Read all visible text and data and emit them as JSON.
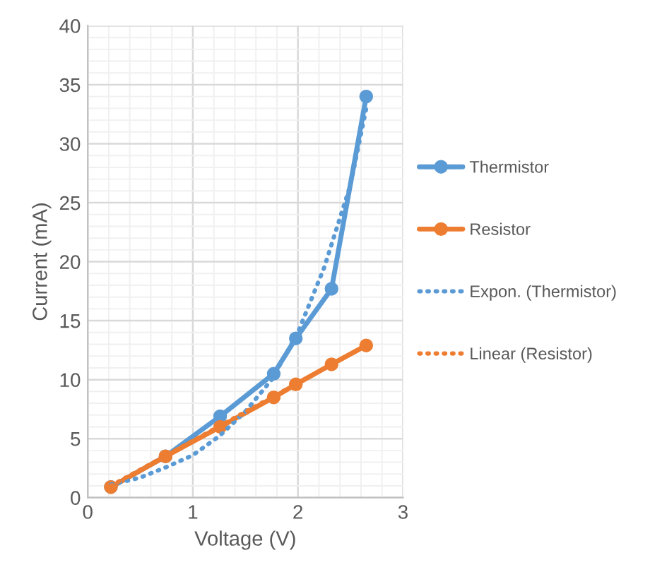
{
  "chart_data": {
    "type": "line",
    "xlabel": "Voltage (V)",
    "ylabel": "Current (mA)",
    "xlim": [
      0,
      3
    ],
    "xticks": [
      0,
      1,
      2,
      3
    ],
    "ylim": [
      0,
      40
    ],
    "yticks": [
      0,
      5,
      10,
      15,
      20,
      25,
      30,
      35,
      40
    ],
    "grid": true,
    "legend": "right",
    "series": [
      {
        "name": "Thermistor",
        "color": "#5b9bd5",
        "marker": "circle",
        "line_style": "solid",
        "x": [
          0.22,
          0.74,
          1.26,
          1.77,
          1.98,
          2.32,
          2.65
        ],
        "values": [
          0.9,
          3.5,
          6.9,
          10.5,
          13.5,
          17.7,
          34.0
        ]
      },
      {
        "name": "Resistor",
        "color": "#ed7d31",
        "marker": "circle",
        "line_style": "solid",
        "x": [
          0.22,
          0.74,
          1.26,
          1.77,
          1.98,
          2.32,
          2.65
        ],
        "values": [
          0.9,
          3.5,
          6.0,
          8.5,
          9.6,
          11.3,
          12.9
        ]
      },
      {
        "name": "Expon. (Thermistor)",
        "color": "#5b9bd5",
        "marker": "none",
        "line_style": "dotted",
        "x": [
          0.22,
          0.5,
          0.75,
          1.0,
          1.25,
          1.5,
          1.75,
          2.0,
          2.25,
          2.5,
          2.65
        ],
        "values": [
          1.1,
          1.7,
          2.6,
          3.6,
          5.2,
          7.3,
          10.0,
          14.0,
          19.5,
          26.5,
          33.0
        ]
      },
      {
        "name": "Linear (Resistor)",
        "color": "#ed7d31",
        "marker": "none",
        "line_style": "dotted",
        "x": [
          0.22,
          2.65
        ],
        "values": [
          1.0,
          12.9
        ]
      }
    ]
  }
}
